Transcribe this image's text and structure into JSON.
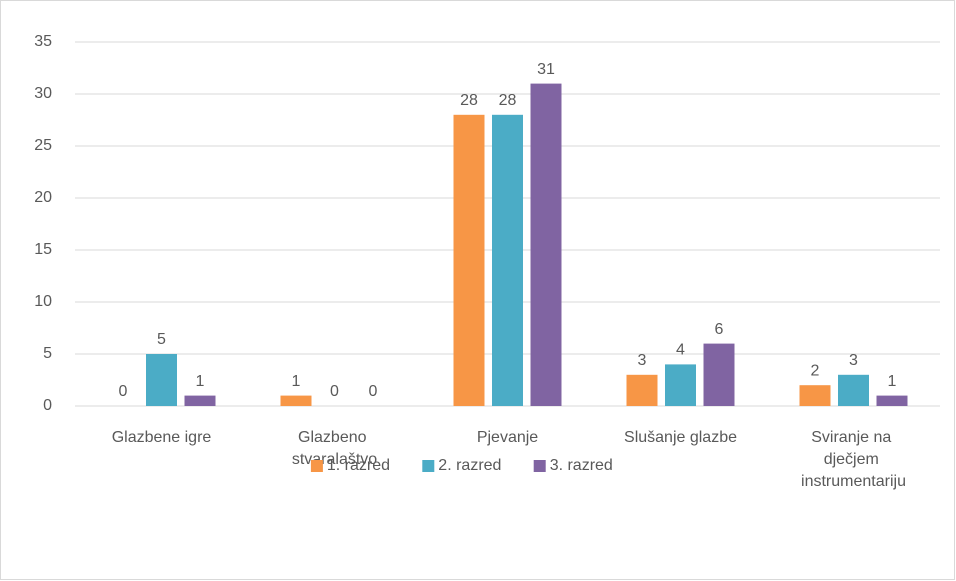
{
  "chart_data": {
    "type": "bar",
    "categories": [
      "Glazbene igre",
      "Glazbeno stvaralaštvo",
      "Pjevanje",
      "Slušanje glazbe",
      "Sviranje na dječjem instrumentariju"
    ],
    "series": [
      {
        "name": "1. razred",
        "color": "#f79646",
        "values": [
          0,
          1,
          28,
          3,
          2
        ]
      },
      {
        "name": "2. razred",
        "color": "#4bacc6",
        "values": [
          5,
          0,
          28,
          4,
          3
        ]
      },
      {
        "name": "3. razred",
        "color": "#8064a2",
        "values": [
          1,
          0,
          31,
          6,
          1
        ]
      }
    ],
    "ylim": [
      0,
      35
    ],
    "yticks": [
      0,
      5,
      10,
      15,
      20,
      25,
      30,
      35
    ],
    "grid": true,
    "legend": "bottom"
  }
}
